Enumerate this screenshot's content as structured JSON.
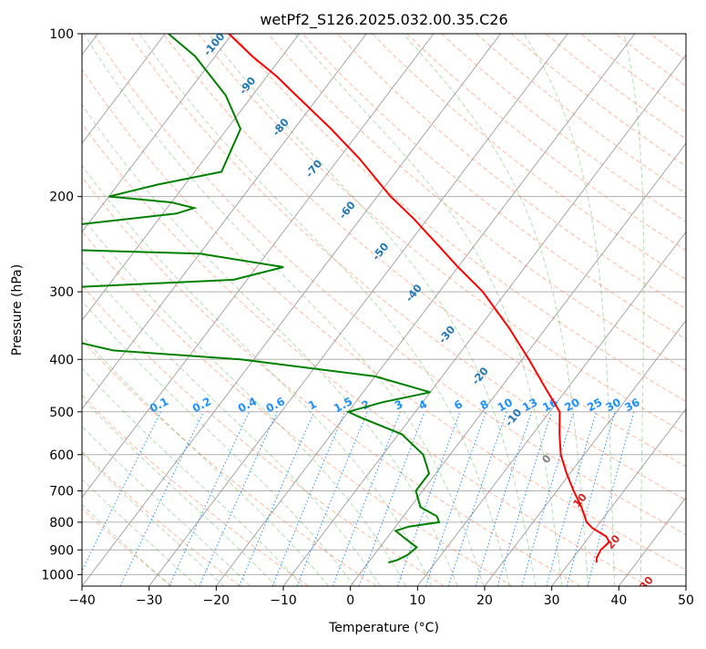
{
  "chart_data": {
    "type": "line",
    "title": "wetPf2_S126.2025.032.00.35.C26",
    "xlabel": "Temperature (°C)",
    "ylabel": "Pressure (hPa)",
    "xlim": [
      -40,
      50
    ],
    "ylim": [
      1050,
      100
    ],
    "y_scale": "log",
    "x_ticks": [
      -40,
      -30,
      -20,
      -10,
      0,
      10,
      20,
      30,
      40,
      50
    ],
    "x_tick_labels": [
      "−40",
      "−30",
      "−20",
      "−10",
      "0",
      "10",
      "20",
      "30",
      "40",
      "50"
    ],
    "y_ticks": [
      100,
      200,
      300,
      400,
      500,
      600,
      700,
      800,
      900,
      1000
    ],
    "y_tick_labels": [
      "100",
      "200",
      "300",
      "400",
      "500",
      "600",
      "700",
      "800",
      "900",
      "1000"
    ],
    "grid": true,
    "colors": {
      "temperature": "#ff0000",
      "dewpoint": "#008000",
      "dry_adiabats": "#ff7f50",
      "moist_adiabats": "#2ca02c",
      "mixing_ratio": "#1e90ff",
      "isotherms": "#808080",
      "contour_label_blue": "#1f77b4",
      "contour_label_red": "#d62728",
      "contour_label_mixing": "#1e90ff"
    },
    "series": [
      {
        "name": "temperature",
        "points": [
          {
            "p": 950,
            "t": 34.0
          },
          {
            "p": 930,
            "t": 33.5
          },
          {
            "p": 900,
            "t": 33.2
          },
          {
            "p": 870,
            "t": 33.6
          },
          {
            "p": 850,
            "t": 32.5
          },
          {
            "p": 820,
            "t": 29.5
          },
          {
            "p": 800,
            "t": 28.0
          },
          {
            "p": 750,
            "t": 25.5
          },
          {
            "p": 700,
            "t": 22.5
          },
          {
            "p": 650,
            "t": 19.5
          },
          {
            "p": 600,
            "t": 16.5
          },
          {
            "p": 550,
            "t": 14.0
          },
          {
            "p": 500,
            "t": 11.5
          },
          {
            "p": 450,
            "t": 6.5
          },
          {
            "p": 400,
            "t": 1.0
          },
          {
            "p": 350,
            "t": -5.5
          },
          {
            "p": 300,
            "t": -13.5
          },
          {
            "p": 270,
            "t": -20.0
          },
          {
            "p": 250,
            "t": -24.5
          },
          {
            "p": 220,
            "t": -32.0
          },
          {
            "p": 200,
            "t": -38.0
          },
          {
            "p": 170,
            "t": -47.0
          },
          {
            "p": 150,
            "t": -54.5
          },
          {
            "p": 130,
            "t": -63.5
          },
          {
            "p": 120,
            "t": -68.5
          },
          {
            "p": 110,
            "t": -74.5
          },
          {
            "p": 100,
            "t": -80.5
          }
        ]
      },
      {
        "name": "dewpoint",
        "points": [
          {
            "p": 950,
            "t": 3.0
          },
          {
            "p": 940,
            "t": 4.0
          },
          {
            "p": 920,
            "t": 5.0
          },
          {
            "p": 890,
            "t": 5.5
          },
          {
            "p": 860,
            "t": 3.0
          },
          {
            "p": 830,
            "t": 0.5
          },
          {
            "p": 815,
            "t": 2.0
          },
          {
            "p": 800,
            "t": 6.0
          },
          {
            "p": 780,
            "t": 5.0
          },
          {
            "p": 750,
            "t": 1.5
          },
          {
            "p": 700,
            "t": -1.0
          },
          {
            "p": 650,
            "t": -1.0
          },
          {
            "p": 600,
            "t": -4.0
          },
          {
            "p": 550,
            "t": -9.5
          },
          {
            "p": 510,
            "t": -18.0
          },
          {
            "p": 500,
            "t": -20.0
          },
          {
            "p": 480,
            "t": -16.0
          },
          {
            "p": 460,
            "t": -10.0
          },
          {
            "p": 430,
            "t": -20.0
          },
          {
            "p": 400,
            "t": -42.0
          },
          {
            "p": 385,
            "t": -62.0
          },
          {
            "p": 370,
            "t": -69.0
          },
          {
            "p": 340,
            "t": -76.0
          },
          {
            "p": 320,
            "t": -79.0
          },
          {
            "p": 298,
            "t": -84.5
          },
          {
            "p": 285,
            "t": -52.0
          },
          {
            "p": 270,
            "t": -46.0
          },
          {
            "p": 255,
            "t": -60.0
          },
          {
            "p": 250,
            "t": -84.5
          },
          {
            "p": 235,
            "t": -87.5
          },
          {
            "p": 225,
            "t": -81.0
          },
          {
            "p": 215,
            "t": -68.0
          },
          {
            "p": 210,
            "t": -66.0
          },
          {
            "p": 205,
            "t": -70.0
          },
          {
            "p": 200,
            "t": -80.0
          },
          {
            "p": 190,
            "t": -74.0
          },
          {
            "p": 180,
            "t": -66.0
          },
          {
            "p": 150,
            "t": -68.0
          },
          {
            "p": 130,
            "t": -74.0
          },
          {
            "p": 110,
            "t": -83.0
          },
          {
            "p": 100,
            "t": -89.5
          }
        ]
      }
    ],
    "dry_adiabat_labels": [
      "-100",
      "-90",
      "-80",
      "-70",
      "-60",
      "-50",
      "-40",
      "-30",
      "-20",
      "-10",
      "0",
      "10",
      "20",
      "30",
      "40"
    ],
    "mixing_ratio_labels": [
      "0.1",
      "0.2",
      "0.4",
      "0.6",
      "1",
      "1.5",
      "2",
      "3",
      "4",
      "6",
      "8",
      "10",
      "13",
      "16",
      "20",
      "25",
      "30",
      "36"
    ]
  }
}
